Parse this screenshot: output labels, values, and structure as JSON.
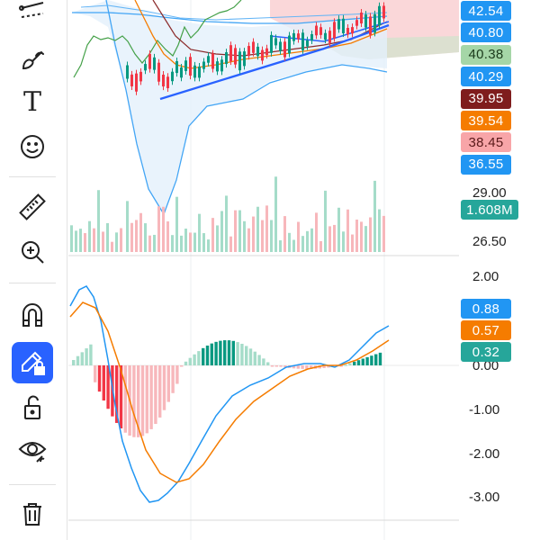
{
  "toolbar": {
    "tools": [
      {
        "name": "indicators-tool",
        "icon": "line-tools-icon"
      },
      {
        "name": "brush-tool",
        "icon": "brush-icon"
      },
      {
        "name": "text-tool",
        "icon": "text-icon"
      },
      {
        "name": "emoji-tool",
        "icon": "smiley-icon"
      },
      {
        "name": "measure-tool",
        "icon": "ruler-icon"
      },
      {
        "name": "zoom-tool",
        "icon": "zoom-in-icon"
      },
      {
        "name": "magnet-tool",
        "icon": "magnet-icon"
      },
      {
        "name": "lock-drawings-tool",
        "icon": "pencil-lock-icon",
        "active": true
      },
      {
        "name": "lock-tool",
        "icon": "unlock-icon"
      },
      {
        "name": "hide-tool",
        "icon": "eye-icon"
      },
      {
        "name": "delete-tool",
        "icon": "trash-icon"
      }
    ],
    "text_tool_glyph": "T"
  },
  "price_axis": {
    "tags": [
      {
        "label": "42.54",
        "color": "#2196f3",
        "text_color": "#ffffff"
      },
      {
        "label": "40.80",
        "color": "#2196f3",
        "text_color": "#ffffff"
      },
      {
        "label": "40.38",
        "color": "#a5d6a7",
        "text_color": "#1b3a1b"
      },
      {
        "label": "40.29",
        "color": "#2196f3",
        "text_color": "#ffffff"
      },
      {
        "label": "39.95",
        "color": "#7f1d1d",
        "text_color": "#ffffff"
      },
      {
        "label": "39.54",
        "color": "#f57c00",
        "text_color": "#ffffff"
      },
      {
        "label": "38.45",
        "color": "#f8a5a8",
        "text_color": "#5a1a1a"
      },
      {
        "label": "36.55",
        "color": "#2196f3",
        "text_color": "#ffffff"
      }
    ]
  },
  "volume_axis": {
    "labels": [
      "29.00",
      "26.50"
    ],
    "volume_tag": {
      "label": "1.608M",
      "color": "#26a69a"
    }
  },
  "macd_axis": {
    "labels": [
      "2.00",
      "0.00",
      "-1.00",
      "-2.00",
      "-3.00"
    ],
    "tags": [
      {
        "label": "0.88",
        "color": "#2196f3"
      },
      {
        "label": "0.57",
        "color": "#f57c00"
      },
      {
        "label": "0.32",
        "color": "#26a69a"
      }
    ]
  },
  "colors": {
    "up": "#089981",
    "down": "#f23645",
    "up_light": "#a5dcc9",
    "down_light": "#f7b7bb",
    "macd_line": "#2196f3",
    "signal_line": "#f57c00",
    "trend_line": "#2962ff"
  }
}
